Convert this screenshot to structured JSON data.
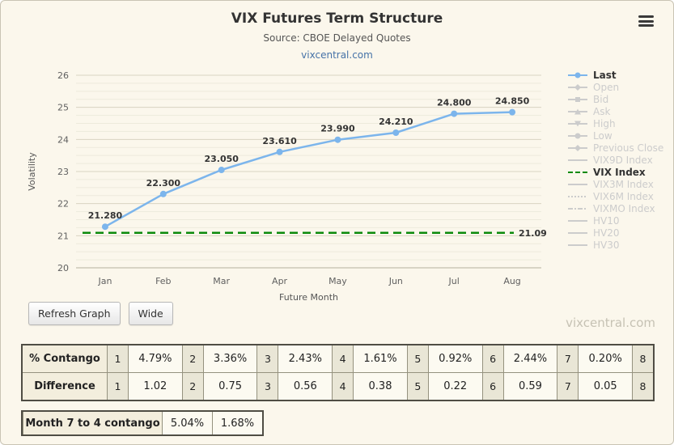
{
  "header": {
    "title": "VIX Futures Term Structure",
    "subtitle": "Source: CBOE Delayed Quotes",
    "link": "vixcentral.com"
  },
  "buttons": {
    "refresh": "Refresh Graph",
    "wide": "Wide"
  },
  "watermark": "vixcentral.com",
  "chart_data": {
    "type": "line",
    "title": "VIX Futures Term Structure",
    "xlabel": "Future Month",
    "ylabel": "Volatility",
    "ylim": [
      20,
      26
    ],
    "yticks": [
      20,
      21,
      22,
      23,
      24,
      25,
      26
    ],
    "categories": [
      "Jan",
      "Feb",
      "Mar",
      "Apr",
      "May",
      "Jun",
      "Jul",
      "Aug"
    ],
    "grid": true,
    "legend_position": "right",
    "series": [
      {
        "name": "Last",
        "type": "line",
        "color": "#7cb5ec",
        "values": [
          21.28,
          22.3,
          23.05,
          23.61,
          23.99,
          24.21,
          24.8,
          24.85
        ],
        "labels": [
          "21.280",
          "22.300",
          "23.050",
          "23.610",
          "23.990",
          "24.210",
          "24.800",
          "24.850"
        ]
      },
      {
        "name": "VIX Index",
        "type": "hline",
        "color": "#0b8a0b",
        "dash": true,
        "value": 21.09,
        "label": "21.09"
      }
    ]
  },
  "legend": {
    "items": [
      {
        "label": "Last",
        "active": true,
        "color": "#7cb5ec",
        "marker": "circle"
      },
      {
        "label": "Open",
        "active": false,
        "marker": "diamond"
      },
      {
        "label": "Bid",
        "active": false,
        "marker": "square"
      },
      {
        "label": "Ask",
        "active": false,
        "marker": "triangle"
      },
      {
        "label": "High",
        "active": false,
        "marker": "triangle-down"
      },
      {
        "label": "Low",
        "active": false,
        "marker": "circle"
      },
      {
        "label": "Previous Close",
        "active": false,
        "marker": "diamond"
      },
      {
        "label": "VIX9D Index",
        "active": false,
        "marker": "none"
      },
      {
        "label": "VIX Index",
        "active": true,
        "color": "#0b8a0b",
        "marker": "none",
        "dash": "dash"
      },
      {
        "label": "VIX3M Index",
        "active": false,
        "marker": "none"
      },
      {
        "label": "VIX6M Index",
        "active": false,
        "marker": "none",
        "dash": "dot"
      },
      {
        "label": "VIXMO Index",
        "active": false,
        "marker": "none",
        "dash": "dashdot"
      },
      {
        "label": "HV10",
        "active": false,
        "marker": "none"
      },
      {
        "label": "HV20",
        "active": false,
        "marker": "none"
      },
      {
        "label": "HV30",
        "active": false,
        "marker": "none"
      }
    ]
  },
  "tables": {
    "contango": {
      "rows": [
        {
          "label": "% Contango",
          "cells": [
            "1",
            "4.79%",
            "2",
            "3.36%",
            "3",
            "2.43%",
            "4",
            "1.61%",
            "5",
            "0.92%",
            "6",
            "2.44%",
            "7",
            "0.20%",
            "8"
          ]
        },
        {
          "label": "Difference",
          "cells": [
            "1",
            "1.02",
            "2",
            "0.75",
            "3",
            "0.56",
            "4",
            "0.38",
            "5",
            "0.22",
            "6",
            "0.59",
            "7",
            "0.05",
            "8"
          ]
        }
      ]
    },
    "summary": {
      "label": "Month 7 to 4 contango",
      "values": [
        "5.04%",
        "1.68%"
      ]
    }
  }
}
